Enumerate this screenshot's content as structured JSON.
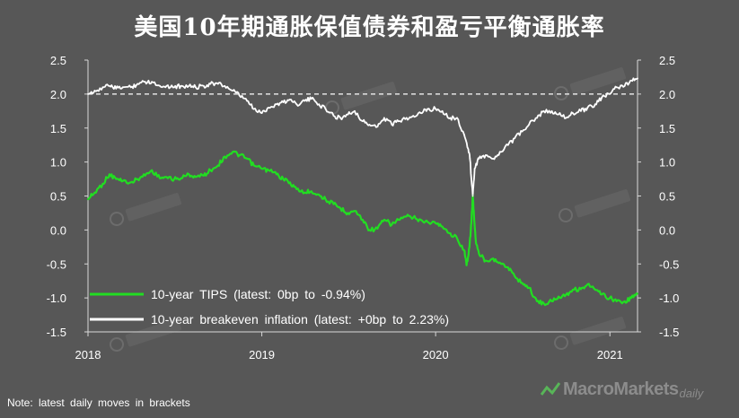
{
  "title": "美国10年期通胀保值债券和盈亏平衡通胀率",
  "note": "Note: latest daily moves in brackets",
  "brand": {
    "main": "MacroMarkets",
    "sub": "daily"
  },
  "colors": {
    "background": "#575757",
    "tips": "#22dd22",
    "breakeven": "#ffffff",
    "refline": "#ffffff",
    "grid": "#6a6a6a"
  },
  "chart_data": {
    "type": "line",
    "x_ticks": [
      "2018",
      "2019",
      "2020",
      "2021"
    ],
    "y_ticks": [
      "2.5",
      "2.0",
      "1.5",
      "1.0",
      "0.5",
      "0.0",
      "-0.5",
      "-1.0",
      "-1.5"
    ],
    "ylim": [
      -1.5,
      2.5
    ],
    "xlim": [
      "2018-01-01",
      "2021-02-28"
    ],
    "reference_line": {
      "y": 2.0,
      "style": "dashed"
    },
    "axes": {
      "left": true,
      "right": true,
      "grid": false
    },
    "legend_placement": "bottom-left",
    "series": [
      {
        "name": "10-year TIPS (latest: 0bp to -0.94%)",
        "color": "#22dd22",
        "points": [
          [
            "2018-01-01",
            0.45
          ],
          [
            "2018-01-15",
            0.55
          ],
          [
            "2018-02-01",
            0.68
          ],
          [
            "2018-02-15",
            0.82
          ],
          [
            "2018-03-01",
            0.75
          ],
          [
            "2018-03-15",
            0.72
          ],
          [
            "2018-04-01",
            0.7
          ],
          [
            "2018-04-15",
            0.75
          ],
          [
            "2018-05-01",
            0.8
          ],
          [
            "2018-05-15",
            0.88
          ],
          [
            "2018-06-01",
            0.76
          ],
          [
            "2018-06-15",
            0.78
          ],
          [
            "2018-07-01",
            0.75
          ],
          [
            "2018-07-15",
            0.76
          ],
          [
            "2018-08-01",
            0.82
          ],
          [
            "2018-08-15",
            0.78
          ],
          [
            "2018-09-01",
            0.8
          ],
          [
            "2018-09-15",
            0.88
          ],
          [
            "2018-10-01",
            0.95
          ],
          [
            "2018-10-15",
            1.08
          ],
          [
            "2018-11-01",
            1.15
          ],
          [
            "2018-11-15",
            1.1
          ],
          [
            "2018-12-01",
            1.05
          ],
          [
            "2018-12-15",
            0.95
          ],
          [
            "2019-01-01",
            0.9
          ],
          [
            "2019-01-15",
            0.88
          ],
          [
            "2019-02-01",
            0.82
          ],
          [
            "2019-02-15",
            0.75
          ],
          [
            "2019-03-01",
            0.7
          ],
          [
            "2019-03-15",
            0.6
          ],
          [
            "2019-04-01",
            0.55
          ],
          [
            "2019-04-15",
            0.57
          ],
          [
            "2019-05-01",
            0.52
          ],
          [
            "2019-05-15",
            0.45
          ],
          [
            "2019-06-01",
            0.38
          ],
          [
            "2019-06-15",
            0.32
          ],
          [
            "2019-07-01",
            0.25
          ],
          [
            "2019-07-15",
            0.28
          ],
          [
            "2019-08-01",
            0.15
          ],
          [
            "2019-08-15",
            0.0
          ],
          [
            "2019-09-01",
            0.02
          ],
          [
            "2019-09-15",
            0.15
          ],
          [
            "2019-10-01",
            0.08
          ],
          [
            "2019-10-15",
            0.15
          ],
          [
            "2019-11-01",
            0.2
          ],
          [
            "2019-11-15",
            0.18
          ],
          [
            "2019-12-01",
            0.15
          ],
          [
            "2019-12-15",
            0.12
          ],
          [
            "2020-01-01",
            0.1
          ],
          [
            "2020-01-15",
            0.05
          ],
          [
            "2020-02-01",
            -0.05
          ],
          [
            "2020-02-15",
            -0.12
          ],
          [
            "2020-03-01",
            -0.3
          ],
          [
            "2020-03-06",
            -0.52
          ],
          [
            "2020-03-12",
            -0.25
          ],
          [
            "2020-03-16",
            0.1
          ],
          [
            "2020-03-19",
            0.5
          ],
          [
            "2020-03-22",
            0.15
          ],
          [
            "2020-03-26",
            -0.2
          ],
          [
            "2020-04-01",
            -0.35
          ],
          [
            "2020-04-15",
            -0.45
          ],
          [
            "2020-05-01",
            -0.42
          ],
          [
            "2020-05-15",
            -0.48
          ],
          [
            "2020-06-01",
            -0.55
          ],
          [
            "2020-06-15",
            -0.68
          ],
          [
            "2020-07-01",
            -0.78
          ],
          [
            "2020-07-15",
            -0.85
          ],
          [
            "2020-08-01",
            -1.05
          ],
          [
            "2020-08-15",
            -1.08
          ],
          [
            "2020-09-01",
            -1.05
          ],
          [
            "2020-09-15",
            -0.98
          ],
          [
            "2020-10-01",
            -0.95
          ],
          [
            "2020-10-15",
            -0.88
          ],
          [
            "2020-11-01",
            -0.87
          ],
          [
            "2020-11-15",
            -0.8
          ],
          [
            "2020-12-01",
            -0.88
          ],
          [
            "2020-12-15",
            -0.95
          ],
          [
            "2021-01-01",
            -1.0
          ],
          [
            "2021-01-15",
            -1.05
          ],
          [
            "2021-02-01",
            -1.05
          ],
          [
            "2021-02-15",
            -1.0
          ],
          [
            "2021-02-28",
            -0.94
          ]
        ]
      },
      {
        "name": "10-year breakeven inflation (latest: +0bp to 2.23%)",
        "color": "#ffffff",
        "points": [
          [
            "2018-01-01",
            2.0
          ],
          [
            "2018-01-15",
            2.05
          ],
          [
            "2018-02-01",
            2.1
          ],
          [
            "2018-02-15",
            2.12
          ],
          [
            "2018-03-01",
            2.08
          ],
          [
            "2018-03-15",
            2.1
          ],
          [
            "2018-04-01",
            2.1
          ],
          [
            "2018-04-15",
            2.15
          ],
          [
            "2018-05-01",
            2.18
          ],
          [
            "2018-05-15",
            2.18
          ],
          [
            "2018-06-01",
            2.12
          ],
          [
            "2018-06-15",
            2.12
          ],
          [
            "2018-07-01",
            2.1
          ],
          [
            "2018-07-15",
            2.12
          ],
          [
            "2018-08-01",
            2.12
          ],
          [
            "2018-08-15",
            2.1
          ],
          [
            "2018-09-01",
            2.12
          ],
          [
            "2018-09-15",
            2.15
          ],
          [
            "2018-10-01",
            2.15
          ],
          [
            "2018-10-15",
            2.12
          ],
          [
            "2018-11-01",
            2.05
          ],
          [
            "2018-11-15",
            1.98
          ],
          [
            "2018-12-01",
            1.9
          ],
          [
            "2018-12-15",
            1.78
          ],
          [
            "2019-01-01",
            1.72
          ],
          [
            "2019-01-15",
            1.8
          ],
          [
            "2019-02-01",
            1.85
          ],
          [
            "2019-02-15",
            1.88
          ],
          [
            "2019-03-01",
            1.92
          ],
          [
            "2019-03-15",
            1.85
          ],
          [
            "2019-04-01",
            1.9
          ],
          [
            "2019-04-15",
            1.93
          ],
          [
            "2019-05-01",
            1.85
          ],
          [
            "2019-05-15",
            1.78
          ],
          [
            "2019-06-01",
            1.68
          ],
          [
            "2019-06-15",
            1.65
          ],
          [
            "2019-07-01",
            1.7
          ],
          [
            "2019-07-15",
            1.75
          ],
          [
            "2019-08-01",
            1.6
          ],
          [
            "2019-08-15",
            1.55
          ],
          [
            "2019-09-01",
            1.52
          ],
          [
            "2019-09-15",
            1.65
          ],
          [
            "2019-10-01",
            1.55
          ],
          [
            "2019-10-15",
            1.6
          ],
          [
            "2019-11-01",
            1.65
          ],
          [
            "2019-11-15",
            1.68
          ],
          [
            "2019-12-01",
            1.72
          ],
          [
            "2019-12-15",
            1.78
          ],
          [
            "2020-01-01",
            1.78
          ],
          [
            "2020-01-15",
            1.75
          ],
          [
            "2020-02-01",
            1.65
          ],
          [
            "2020-02-15",
            1.65
          ],
          [
            "2020-03-01",
            1.4
          ],
          [
            "2020-03-09",
            1.2
          ],
          [
            "2020-03-13",
            1.05
          ],
          [
            "2020-03-19",
            0.5
          ],
          [
            "2020-03-23",
            0.9
          ],
          [
            "2020-04-01",
            1.05
          ],
          [
            "2020-04-15",
            1.1
          ],
          [
            "2020-05-01",
            1.05
          ],
          [
            "2020-05-15",
            1.15
          ],
          [
            "2020-06-01",
            1.25
          ],
          [
            "2020-06-15",
            1.35
          ],
          [
            "2020-07-01",
            1.45
          ],
          [
            "2020-07-15",
            1.55
          ],
          [
            "2020-08-01",
            1.65
          ],
          [
            "2020-08-15",
            1.75
          ],
          [
            "2020-09-01",
            1.75
          ],
          [
            "2020-09-15",
            1.7
          ],
          [
            "2020-10-01",
            1.65
          ],
          [
            "2020-10-15",
            1.72
          ],
          [
            "2020-11-01",
            1.75
          ],
          [
            "2020-11-15",
            1.8
          ],
          [
            "2020-12-01",
            1.85
          ],
          [
            "2020-12-15",
            1.95
          ],
          [
            "2021-01-01",
            2.0
          ],
          [
            "2021-01-15",
            2.1
          ],
          [
            "2021-02-01",
            2.12
          ],
          [
            "2021-02-15",
            2.2
          ],
          [
            "2021-02-28",
            2.23
          ]
        ]
      }
    ]
  }
}
